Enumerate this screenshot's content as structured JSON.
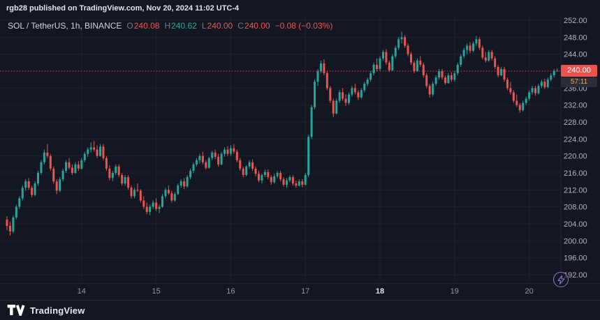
{
  "colors": {
    "background": "#131722",
    "up": "#26a69a",
    "down": "#ef5350",
    "grid": "#1e222d",
    "axis_text": "#b2b5be",
    "countdown_text": "#f7a54a",
    "flash_icon": "#9575cd",
    "text_primary": "#d1d4dc",
    "text_muted": "#787b86",
    "border": "#2a2e39"
  },
  "topbar": {
    "attribution": "rgb28 published on TradingView.com, Nov 20, 2024 11:02 UTC-4"
  },
  "legend": {
    "symbol": "SOL / TetherUS, 1h, BINANCE",
    "open_label": "O",
    "open_value": "240.08",
    "high_label": "H",
    "high_value": "240.62",
    "low_label": "L",
    "low_value": "240.00",
    "close_label": "C",
    "close_value": "240.00",
    "change": "−0.08 (−0.03%)"
  },
  "price_label": {
    "value": "240.00",
    "countdown": "57:11"
  },
  "footer": {
    "brand": "TradingView"
  },
  "chart_data": {
    "type": "candlestick",
    "title": "SOL / TetherUS, 1h, BINANCE",
    "interval": "1h",
    "exchange": "BINANCE",
    "ylim": [
      190,
      254
    ],
    "grid": true,
    "current_price": 240.0,
    "countdown": "57:11",
    "price_axis_ticks": [
      "252.00",
      "248.00",
      "244.00",
      "240.00",
      "236.00",
      "232.00",
      "228.00",
      "224.00",
      "220.00",
      "216.00",
      "212.00",
      "208.00",
      "204.00",
      "200.00",
      "196.00",
      "192.00"
    ],
    "time_axis_ticks": [
      {
        "label": "14",
        "candle_index": 24,
        "bold": false
      },
      {
        "label": "15",
        "candle_index": 48,
        "bold": false
      },
      {
        "label": "16",
        "candle_index": 72,
        "bold": false
      },
      {
        "label": "17",
        "candle_index": 96,
        "bold": false
      },
      {
        "label": "18",
        "candle_index": 120,
        "bold": true
      },
      {
        "label": "19",
        "candle_index": 144,
        "bold": false
      },
      {
        "label": "20",
        "candle_index": 168,
        "bold": false
      }
    ],
    "candles": [
      [
        205.0,
        205.8,
        202.5,
        203.5
      ],
      [
        203.5,
        204.5,
        201.2,
        202.2
      ],
      [
        202.2,
        206.0,
        201.8,
        205.5
      ],
      [
        205.5,
        208.5,
        205.0,
        208.0
      ],
      [
        208.0,
        210.5,
        207.5,
        210.0
      ],
      [
        210.0,
        213.0,
        209.5,
        212.5
      ],
      [
        212.5,
        214.5,
        211.8,
        214.0
      ],
      [
        214.0,
        214.8,
        212.0,
        212.5
      ],
      [
        212.5,
        213.0,
        210.2,
        210.8
      ],
      [
        210.8,
        214.0,
        210.5,
        213.5
      ],
      [
        213.5,
        216.5,
        213.0,
        216.0
      ],
      [
        216.0,
        219.0,
        215.5,
        218.5
      ],
      [
        218.5,
        221.5,
        218.0,
        220.8
      ],
      [
        220.8,
        222.8,
        219.5,
        220.0
      ],
      [
        220.0,
        220.5,
        216.5,
        217.0
      ],
      [
        217.0,
        217.5,
        213.5,
        214.0
      ],
      [
        214.0,
        214.5,
        211.0,
        211.8
      ],
      [
        211.8,
        215.0,
        211.5,
        214.5
      ],
      [
        214.5,
        217.0,
        214.0,
        216.5
      ],
      [
        216.5,
        219.0,
        216.0,
        218.5
      ],
      [
        218.5,
        219.5,
        216.8,
        217.2
      ],
      [
        217.2,
        218.0,
        215.5,
        216.0
      ],
      [
        216.0,
        218.5,
        215.8,
        218.0
      ],
      [
        218.0,
        218.8,
        216.5,
        217.0
      ],
      [
        217.0,
        219.5,
        216.8,
        219.0
      ],
      [
        219.0,
        221.0,
        218.5,
        220.5
      ],
      [
        220.5,
        222.0,
        219.8,
        221.5
      ],
      [
        221.5,
        223.2,
        220.8,
        222.0
      ],
      [
        222.0,
        223.5,
        221.0,
        221.5
      ],
      [
        221.5,
        222.5,
        219.5,
        220.0
      ],
      [
        220.0,
        222.8,
        219.8,
        222.2
      ],
      [
        222.2,
        222.8,
        219.0,
        219.5
      ],
      [
        219.5,
        220.0,
        216.5,
        217.0
      ],
      [
        217.0,
        217.8,
        214.2,
        214.8
      ],
      [
        214.8,
        216.5,
        214.0,
        216.0
      ],
      [
        216.0,
        218.0,
        215.5,
        217.5
      ],
      [
        217.5,
        218.0,
        215.0,
        215.5
      ],
      [
        215.5,
        216.0,
        213.0,
        213.5
      ],
      [
        213.5,
        215.5,
        213.0,
        215.0
      ],
      [
        215.0,
        215.5,
        212.0,
        212.5
      ],
      [
        212.5,
        213.0,
        210.0,
        210.5
      ],
      [
        210.5,
        212.5,
        210.0,
        212.0
      ],
      [
        212.0,
        213.5,
        211.5,
        211.8
      ],
      [
        211.8,
        212.2,
        209.0,
        209.5
      ],
      [
        209.5,
        210.5,
        207.5,
        208.0
      ],
      [
        208.0,
        209.0,
        206.3,
        206.8
      ],
      [
        206.8,
        208.5,
        206.0,
        208.0
      ],
      [
        208.0,
        209.5,
        207.5,
        209.0
      ],
      [
        209.0,
        210.0,
        207.0,
        207.5
      ],
      [
        207.5,
        208.5,
        206.5,
        208.0
      ],
      [
        208.0,
        211.0,
        207.8,
        210.5
      ],
      [
        210.5,
        212.5,
        210.0,
        212.0
      ],
      [
        212.0,
        213.0,
        210.8,
        211.2
      ],
      [
        211.2,
        211.8,
        209.0,
        209.5
      ],
      [
        209.5,
        211.5,
        209.2,
        211.0
      ],
      [
        211.0,
        213.5,
        210.8,
        213.0
      ],
      [
        213.0,
        214.5,
        212.5,
        214.0
      ],
      [
        214.0,
        214.8,
        212.2,
        212.8
      ],
      [
        212.8,
        215.5,
        212.5,
        215.0
      ],
      [
        215.0,
        217.0,
        214.5,
        216.5
      ],
      [
        216.5,
        218.5,
        216.0,
        218.0
      ],
      [
        218.0,
        219.5,
        217.5,
        219.0
      ],
      [
        219.0,
        220.5,
        218.2,
        220.0
      ],
      [
        220.0,
        221.0,
        218.0,
        218.5
      ],
      [
        218.5,
        219.0,
        216.8,
        217.2
      ],
      [
        217.2,
        219.8,
        217.0,
        219.5
      ],
      [
        219.5,
        221.2,
        219.0,
        220.8
      ],
      [
        220.8,
        221.5,
        219.2,
        219.8
      ],
      [
        219.8,
        220.5,
        217.5,
        218.0
      ],
      [
        218.0,
        221.0,
        217.8,
        220.5
      ],
      [
        220.5,
        222.0,
        219.8,
        221.5
      ],
      [
        221.5,
        222.3,
        220.0,
        220.5
      ],
      [
        220.5,
        222.5,
        220.0,
        221.8
      ],
      [
        221.8,
        222.8,
        220.5,
        221.0
      ],
      [
        221.0,
        221.5,
        218.5,
        219.0
      ],
      [
        219.0,
        219.5,
        216.5,
        217.0
      ],
      [
        217.0,
        217.5,
        215.0,
        215.5
      ],
      [
        215.5,
        217.8,
        215.2,
        217.5
      ],
      [
        217.5,
        219.0,
        217.0,
        218.5
      ],
      [
        218.5,
        219.2,
        216.5,
        217.0
      ],
      [
        217.0,
        217.5,
        215.2,
        215.8
      ],
      [
        215.8,
        216.5,
        213.8,
        214.2
      ],
      [
        214.2,
        215.8,
        213.5,
        215.5
      ],
      [
        215.5,
        216.8,
        215.0,
        216.2
      ],
      [
        216.2,
        216.8,
        214.5,
        215.0
      ],
      [
        215.0,
        215.5,
        213.2,
        213.8
      ],
      [
        213.8,
        215.8,
        213.5,
        215.2
      ],
      [
        215.2,
        216.5,
        214.8,
        216.0
      ],
      [
        216.0,
        216.5,
        214.0,
        214.5
      ],
      [
        214.5,
        215.0,
        212.8,
        213.2
      ],
      [
        213.2,
        214.8,
        212.5,
        214.2
      ],
      [
        214.2,
        215.5,
        213.8,
        215.0
      ],
      [
        215.0,
        215.5,
        213.0,
        213.5
      ],
      [
        213.5,
        214.2,
        212.5,
        213.0
      ],
      [
        213.0,
        214.5,
        212.8,
        214.0
      ],
      [
        214.0,
        214.5,
        212.6,
        213.2
      ],
      [
        213.2,
        216.0,
        213.0,
        215.5
      ],
      [
        215.5,
        225.0,
        215.0,
        224.5
      ],
      [
        224.5,
        232.0,
        224.0,
        231.5
      ],
      [
        231.5,
        238.0,
        231.0,
        237.5
      ],
      [
        237.5,
        240.5,
        236.5,
        240.0
      ],
      [
        240.0,
        242.5,
        239.5,
        241.8
      ],
      [
        241.8,
        242.8,
        239.0,
        239.5
      ],
      [
        239.5,
        240.0,
        235.5,
        236.0
      ],
      [
        236.0,
        236.5,
        232.5,
        233.0
      ],
      [
        233.0,
        233.5,
        229.2,
        230.0
      ],
      [
        230.0,
        233.5,
        229.8,
        233.0
      ],
      [
        233.0,
        235.5,
        232.5,
        235.0
      ],
      [
        235.0,
        236.0,
        233.0,
        233.5
      ],
      [
        233.5,
        234.5,
        231.8,
        232.5
      ],
      [
        232.5,
        235.0,
        232.0,
        234.5
      ],
      [
        234.5,
        236.5,
        234.0,
        236.0
      ],
      [
        236.0,
        237.0,
        234.5,
        235.0
      ],
      [
        235.0,
        235.5,
        233.2,
        233.8
      ],
      [
        233.8,
        236.0,
        233.5,
        235.5
      ],
      [
        235.5,
        237.5,
        235.0,
        237.0
      ],
      [
        237.0,
        238.5,
        236.5,
        238.0
      ],
      [
        238.0,
        240.0,
        237.5,
        239.5
      ],
      [
        239.5,
        242.0,
        239.0,
        241.5
      ],
      [
        241.5,
        243.0,
        240.0,
        240.5
      ],
      [
        240.5,
        243.5,
        240.0,
        243.0
      ],
      [
        243.0,
        245.0,
        242.5,
        244.5
      ],
      [
        244.5,
        245.2,
        241.5,
        242.0
      ],
      [
        242.0,
        242.5,
        239.8,
        240.2
      ],
      [
        240.2,
        244.0,
        240.0,
        243.5
      ],
      [
        243.5,
        246.0,
        243.0,
        245.5
      ],
      [
        245.5,
        248.0,
        245.0,
        247.5
      ],
      [
        247.5,
        249.3,
        246.5,
        248.0
      ],
      [
        248.0,
        248.5,
        245.5,
        246.0
      ],
      [
        246.0,
        246.5,
        243.5,
        244.0
      ],
      [
        244.0,
        244.5,
        241.5,
        242.0
      ],
      [
        242.0,
        242.5,
        239.5,
        240.0
      ],
      [
        240.0,
        243.0,
        239.8,
        242.5
      ],
      [
        242.5,
        243.5,
        241.0,
        241.5
      ],
      [
        241.5,
        242.0,
        238.5,
        239.0
      ],
      [
        239.0,
        239.5,
        236.0,
        236.5
      ],
      [
        236.5,
        237.0,
        233.8,
        234.5
      ],
      [
        234.5,
        237.5,
        234.0,
        237.0
      ],
      [
        237.0,
        239.0,
        236.5,
        238.5
      ],
      [
        238.5,
        240.5,
        238.0,
        240.0
      ],
      [
        240.0,
        240.5,
        238.0,
        238.5
      ],
      [
        238.5,
        239.0,
        236.8,
        237.2
      ],
      [
        237.2,
        239.5,
        237.0,
        239.0
      ],
      [
        239.0,
        239.8,
        237.5,
        238.0
      ],
      [
        238.0,
        240.0,
        237.5,
        239.5
      ],
      [
        239.5,
        242.0,
        239.0,
        241.5
      ],
      [
        241.5,
        244.0,
        241.0,
        243.5
      ],
      [
        243.5,
        245.5,
        243.0,
        245.0
      ],
      [
        245.0,
        246.5,
        244.0,
        246.0
      ],
      [
        246.0,
        246.8,
        244.2,
        244.8
      ],
      [
        244.8,
        247.0,
        244.5,
        246.5
      ],
      [
        246.5,
        248.3,
        246.0,
        247.5
      ],
      [
        247.5,
        248.0,
        245.0,
        245.5
      ],
      [
        245.5,
        246.0,
        242.8,
        243.2
      ],
      [
        243.2,
        244.5,
        242.0,
        242.5
      ],
      [
        242.5,
        245.0,
        242.2,
        244.5
      ],
      [
        244.5,
        245.0,
        242.5,
        243.0
      ],
      [
        243.0,
        243.5,
        240.5,
        241.0
      ],
      [
        241.0,
        241.5,
        238.5,
        239.0
      ],
      [
        239.0,
        241.0,
        238.8,
        240.5
      ],
      [
        240.5,
        241.0,
        237.5,
        238.0
      ],
      [
        238.0,
        238.5,
        235.5,
        236.0
      ],
      [
        236.0,
        237.5,
        234.5,
        235.0
      ],
      [
        235.0,
        235.5,
        232.5,
        233.0
      ],
      [
        233.0,
        234.5,
        231.5,
        232.0
      ],
      [
        232.0,
        232.5,
        230.2,
        230.8
      ],
      [
        230.8,
        233.0,
        230.5,
        232.5
      ],
      [
        232.5,
        234.0,
        232.0,
        233.5
      ],
      [
        233.5,
        235.5,
        233.0,
        235.0
      ],
      [
        235.0,
        236.5,
        234.5,
        236.0
      ],
      [
        236.0,
        236.5,
        234.2,
        234.8
      ],
      [
        234.8,
        237.0,
        234.5,
        236.5
      ],
      [
        236.5,
        238.0,
        236.0,
        237.5
      ],
      [
        237.5,
        238.2,
        235.8,
        236.2
      ],
      [
        236.2,
        238.5,
        236.0,
        238.0
      ],
      [
        238.0,
        239.5,
        237.6,
        239.0
      ],
      [
        239.0,
        240.5,
        238.5,
        240.1
      ],
      [
        240.08,
        240.62,
        240.0,
        240.0
      ]
    ]
  }
}
